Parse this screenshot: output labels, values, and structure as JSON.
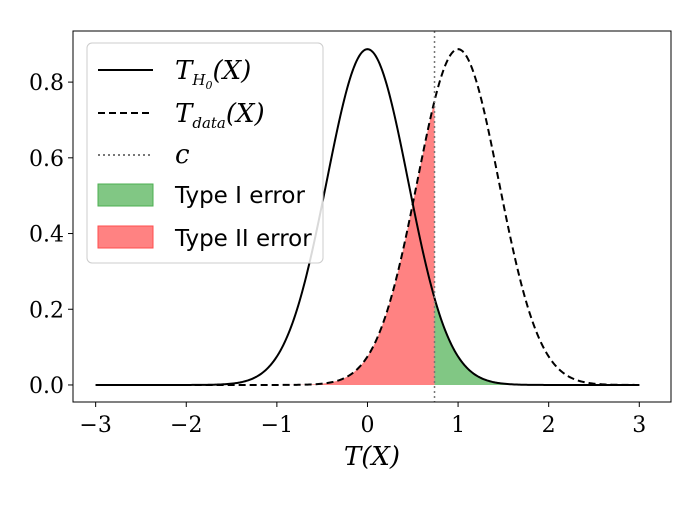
{
  "chart_data": {
    "type": "line",
    "title": "",
    "xlabel": "T(X)",
    "ylabel": "",
    "xlim": [
      -3.25,
      3.35
    ],
    "ylim": [
      -0.045,
      0.935
    ],
    "xticks": [
      -3,
      -2,
      -1,
      0,
      1,
      2,
      3
    ],
    "xtick_labels": [
      "−3",
      "−2",
      "−1",
      "0",
      "1",
      "2",
      "3"
    ],
    "yticks": [
      0.0,
      0.2,
      0.4,
      0.6,
      0.8
    ],
    "ytick_labels": [
      "0.0",
      "0.2",
      "0.4",
      "0.6",
      "0.8"
    ],
    "grid": false,
    "legend_position": "top-left",
    "threshold_c": 0.74,
    "x_range": [
      -3,
      3
    ],
    "series": [
      {
        "name": "T_H0(X)",
        "style": "solid",
        "color": "#000000",
        "mean": 0,
        "std": 0.45,
        "peak": 0.887
      },
      {
        "name": "T_data(X)",
        "style": "dashed",
        "color": "#000000",
        "mean": 1,
        "std": 0.45,
        "peak": 0.887
      }
    ],
    "regions": [
      {
        "name": "Type I error",
        "color": "#4caf50",
        "under": "T_H0(X)",
        "from": "c",
        "to": 3
      },
      {
        "name": "Type II error",
        "color": "#ff4d4d",
        "under": "T_data(X)",
        "from": -3,
        "to": "c"
      }
    ],
    "legend": {
      "h0": {
        "main": "T",
        "sub": "H",
        "subsub": "0",
        "tail": "(X)"
      },
      "data": {
        "main": "T",
        "sub": "data",
        "tail": "(X)"
      },
      "c": {
        "label": "c"
      },
      "type1": {
        "label": "Type I error"
      },
      "type2": {
        "label": "Type II error"
      }
    }
  }
}
